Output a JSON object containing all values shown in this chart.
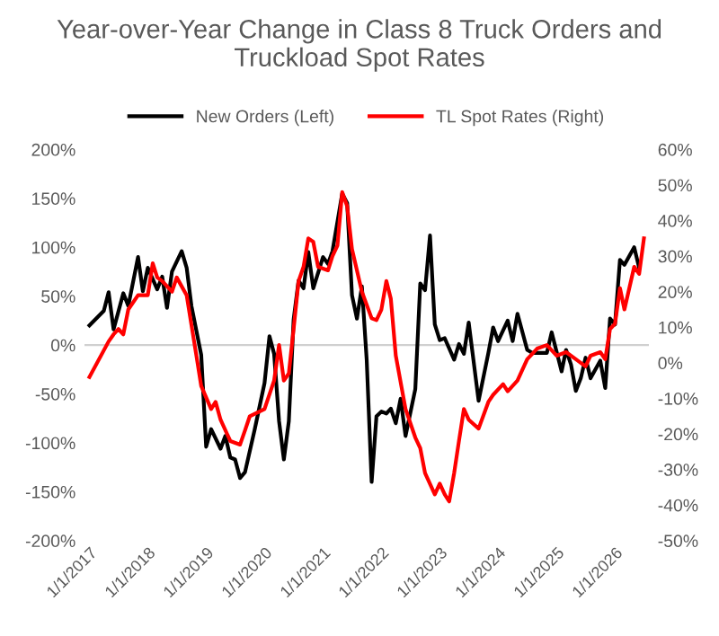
{
  "chart_data": {
    "type": "line",
    "title": "Year-over-Year Change in Class 8 Truck Orders and Truckload Spot Rates",
    "series": [
      {
        "name": "New Orders (Left)",
        "color": "#000000",
        "axis": "y",
        "x": [
          "2017-01",
          "2017-04",
          "2017-05",
          "2017-06",
          "2017-08",
          "2017-09",
          "2017-11",
          "2017-12",
          "2018-01",
          "2018-03",
          "2018-04",
          "2018-05",
          "2018-06",
          "2018-08",
          "2018-09",
          "2018-10",
          "2018-12",
          "2019-01",
          "2019-02",
          "2019-04",
          "2019-05",
          "2019-06",
          "2019-07",
          "2019-08",
          "2019-09",
          "2019-11",
          "2020-01",
          "2020-02",
          "2020-03",
          "2020-04",
          "2020-05",
          "2020-06",
          "2020-07",
          "2020-08",
          "2020-09",
          "2020-10",
          "2020-11",
          "2021-01",
          "2021-02",
          "2021-03",
          "2021-05",
          "2021-06",
          "2021-07",
          "2021-08",
          "2021-09",
          "2021-10",
          "2021-11",
          "2021-12",
          "2022-01",
          "2022-02",
          "2022-03",
          "2022-04",
          "2022-05",
          "2022-06",
          "2022-08",
          "2022-09",
          "2022-10",
          "2022-11",
          "2022-12",
          "2023-01",
          "2023-02",
          "2023-04",
          "2023-05",
          "2023-06",
          "2023-07",
          "2023-09",
          "2023-11",
          "2023-12",
          "2024-01",
          "2024-03",
          "2024-04",
          "2024-05",
          "2024-07",
          "2024-08",
          "2024-10",
          "2024-11",
          "2024-12",
          "2025-02",
          "2025-03",
          "2025-04",
          "2025-05",
          "2025-06",
          "2025-07",
          "2025-08",
          "2025-10",
          "2025-11",
          "2025-12",
          "2026-01",
          "2026-02",
          "2026-03",
          "2026-05",
          "2026-06"
        ],
        "values": [
          20,
          35,
          54,
          16,
          53,
          40,
          90,
          55,
          79,
          57,
          70,
          38,
          75,
          96,
          79,
          40,
          -10,
          -104,
          -86,
          -106,
          -93,
          -115,
          -117,
          -136,
          -130,
          -86,
          -39,
          9,
          -9,
          -78,
          -117,
          -78,
          26,
          66,
          58,
          95,
          58,
          90,
          83,
          96,
          155,
          145,
          51,
          27,
          60,
          -15,
          -140,
          -73,
          -68,
          -70,
          -65,
          -80,
          -55,
          -93,
          -45,
          63,
          56,
          112,
          21,
          5,
          7,
          -15,
          1,
          -9,
          23,
          -57,
          -8,
          18,
          4,
          25,
          4,
          32,
          -5,
          -8,
          -8,
          -8,
          13,
          -27,
          -5,
          -20,
          -47,
          -34,
          -13,
          -34,
          -16,
          -44,
          27,
          21,
          87,
          82,
          100,
          79
        ]
      },
      {
        "name": "TL Spot Rates (Right)",
        "color": "#ff0000",
        "axis": "y2",
        "x": [
          "2017-01",
          "2017-05",
          "2017-06",
          "2017-07",
          "2017-08",
          "2017-09",
          "2017-11",
          "2018-01",
          "2018-02",
          "2018-03",
          "2018-04",
          "2018-06",
          "2018-07",
          "2018-09",
          "2018-11",
          "2018-12",
          "2019-02",
          "2019-03",
          "2019-04",
          "2019-06",
          "2019-08",
          "2019-09",
          "2019-10",
          "2020-01",
          "2020-03",
          "2020-04",
          "2020-05",
          "2020-06",
          "2020-07",
          "2020-08",
          "2020-09",
          "2020-10",
          "2020-11",
          "2020-12",
          "2021-02",
          "2021-03",
          "2021-04",
          "2021-05",
          "2021-06",
          "2021-07",
          "2021-09",
          "2021-11",
          "2021-12",
          "2022-01",
          "2022-02",
          "2022-03",
          "2022-04",
          "2022-06",
          "2022-08",
          "2022-09",
          "2022-10",
          "2022-12",
          "2023-01",
          "2023-02",
          "2023-03",
          "2023-04",
          "2023-05",
          "2023-06",
          "2023-07",
          "2023-09",
          "2023-11",
          "2023-12",
          "2024-02",
          "2024-03",
          "2024-05",
          "2024-07",
          "2024-09",
          "2024-11",
          "2025-01",
          "2025-03",
          "2025-05",
          "2025-07",
          "2025-08",
          "2025-10",
          "2025-11",
          "2025-12",
          "2026-01",
          "2026-02",
          "2026-03",
          "2026-05",
          "2026-06",
          "2026-07"
        ],
        "values": [
          -4,
          6,
          8,
          9.5,
          8,
          15,
          19,
          19,
          28,
          24,
          23,
          20,
          24,
          19,
          2,
          -6.5,
          -13,
          -11,
          -16,
          -22,
          -23,
          -19,
          -15,
          -13,
          -5,
          5,
          -5,
          -3,
          9.5,
          23,
          27,
          35,
          34,
          27,
          26,
          30,
          33,
          48,
          44,
          32,
          20,
          12.5,
          12,
          15,
          23,
          18,
          2,
          -13,
          -21,
          -24,
          -31,
          -37,
          -34,
          -37,
          -39,
          -31,
          -22,
          -13,
          -16,
          -18.5,
          -11,
          -9,
          -6,
          -8,
          -5,
          1,
          4,
          5,
          2,
          3,
          1,
          -1,
          2,
          3,
          1,
          9.5,
          11,
          21,
          15,
          27,
          25,
          35
        ]
      }
    ],
    "xlim": [
      "2016-12",
      "2026-08"
    ],
    "xticks": [
      {
        "value": "2017-01-01",
        "label": "1/1/2017"
      },
      {
        "value": "2018-01-01",
        "label": "1/1/2018"
      },
      {
        "value": "2019-01-01",
        "label": "1/1/2019"
      },
      {
        "value": "2020-01-01",
        "label": "1/1/2020"
      },
      {
        "value": "2021-01-01",
        "label": "1/1/2021"
      },
      {
        "value": "2022-01-01",
        "label": "1/1/2022"
      },
      {
        "value": "2023-01-01",
        "label": "1/1/2023"
      },
      {
        "value": "2024-01-01",
        "label": "1/1/2024"
      },
      {
        "value": "2025-01-01",
        "label": "1/1/2025"
      },
      {
        "value": "2026-01-01",
        "label": "1/1/2026"
      }
    ],
    "ylim": [
      -200,
      200
    ],
    "yticks": [
      {
        "value": -200,
        "label": "-200%"
      },
      {
        "value": -150,
        "label": "-150%"
      },
      {
        "value": -100,
        "label": "-100%"
      },
      {
        "value": -50,
        "label": "-50%"
      },
      {
        "value": 0,
        "label": "0%"
      },
      {
        "value": 50,
        "label": "50%"
      },
      {
        "value": 100,
        "label": "100%"
      },
      {
        "value": 150,
        "label": "150%"
      },
      {
        "value": 200,
        "label": "200%"
      }
    ],
    "y2lim": [
      -50,
      60
    ],
    "y2ticks": [
      {
        "value": -50,
        "label": "-50%"
      },
      {
        "value": -40,
        "label": "-40%"
      },
      {
        "value": -30,
        "label": "-30%"
      },
      {
        "value": -20,
        "label": "-20%"
      },
      {
        "value": -10,
        "label": "-10%"
      },
      {
        "value": 0,
        "label": "0%"
      },
      {
        "value": 10,
        "label": "10%"
      },
      {
        "value": 20,
        "label": "20%"
      },
      {
        "value": 30,
        "label": "30%"
      },
      {
        "value": 40,
        "label": "40%"
      },
      {
        "value": 50,
        "label": "50%"
      },
      {
        "value": 60,
        "label": "60%"
      }
    ],
    "ref_lines": [
      {
        "axis": "y",
        "value": 0,
        "label": null,
        "color": "#d0d0d0"
      }
    ],
    "legend": "top",
    "marker": "none",
    "line_style": "solid"
  }
}
